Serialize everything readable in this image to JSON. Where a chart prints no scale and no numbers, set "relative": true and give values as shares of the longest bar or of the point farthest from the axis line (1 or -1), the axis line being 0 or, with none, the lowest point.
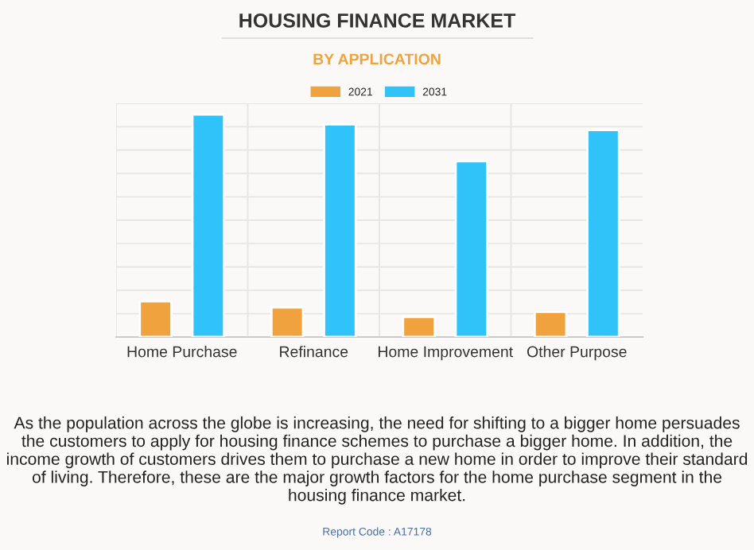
{
  "chart_data": {
    "type": "bar",
    "title": "HOUSING FINANCE MARKET",
    "subtitle": "BY APPLICATION",
    "categories": [
      "Home Purchase",
      "Refinance",
      "Home Improvement",
      "Other Purpose"
    ],
    "series": [
      {
        "name": "2021",
        "color": "#f0a23e",
        "values": [
          0.16,
          0.133,
          0.09,
          0.113
        ]
      },
      {
        "name": "2031",
        "color": "#2fc3f9",
        "values": [
          1.0,
          0.955,
          0.79,
          0.93
        ]
      }
    ],
    "relative": true,
    "grid": true,
    "legend": "top",
    "annotations": [
      "As the population across the globe is increasing, the need for shifting to a bigger home persuades the customers to apply for housing finance schemes to purchase a bigger home. In addition, the income growth of customers drives them to purchase a new home in order to improve their standard of living. Therefore, these are the major growth factors for the home purchase segment in the housing finance market.",
      "Report Code : A17178"
    ]
  }
}
